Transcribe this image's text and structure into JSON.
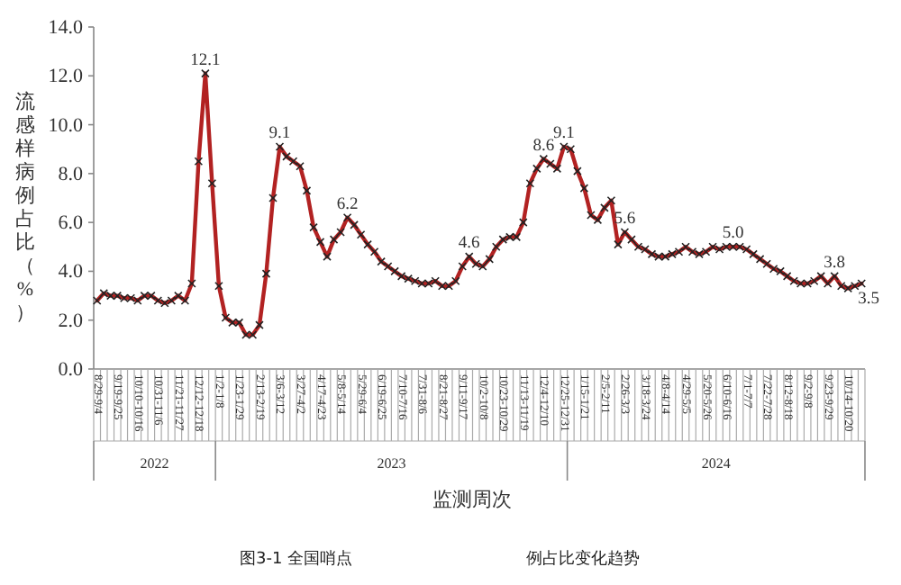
{
  "chart_data": {
    "type": "line",
    "xlabel": "监测周次",
    "ylabel": "流感样病例占比（%）",
    "categories": [
      "8/29-9/4",
      null,
      null,
      "9/19-9/25",
      null,
      null,
      "10/10-10/16",
      null,
      null,
      "10/31-11/6",
      null,
      null,
      "11/21-11/27",
      null,
      null,
      "12/12-12/18",
      null,
      null,
      "1/2-1/8",
      null,
      null,
      "1/23-1/29",
      null,
      null,
      "2/13-2/19",
      null,
      null,
      "3/6-3/12",
      null,
      null,
      "3/27-4/2",
      null,
      null,
      "4/17-4/23",
      null,
      null,
      "5/8-5/14",
      null,
      null,
      "5/29-6/4",
      null,
      null,
      "6/19-6/25",
      null,
      null,
      "7/10-7/16",
      null,
      null,
      "7/31-8/6",
      null,
      null,
      "8/21-8/27",
      null,
      null,
      "9/11-9/17",
      null,
      null,
      "10/2-10/8",
      null,
      null,
      "10/23-10/29",
      null,
      null,
      "11/13-11/19",
      null,
      null,
      "12/4-12/10",
      null,
      null,
      "12/25-12/31",
      null,
      null,
      "1/15-1/21",
      null,
      null,
      "2/5-2/11",
      null,
      null,
      "2/26-3/3",
      null,
      null,
      "3/18-3/24",
      null,
      null,
      "4/8-4/14",
      null,
      null,
      "4/29-5/5",
      null,
      null,
      "5/20-5/26",
      null,
      null,
      "6/10-6/16",
      null,
      null,
      "7/1-7/7",
      null,
      null,
      "7/22-7/28",
      null,
      null,
      "8/12-8/18",
      null,
      null,
      "9/2-9/8",
      null,
      null,
      "9/23-9/29",
      null,
      null,
      "10/14-10/20",
      null,
      null
    ],
    "series": [
      {
        "color": "#b22222",
        "values": [
          2.8,
          3.1,
          3.0,
          3.0,
          2.9,
          2.9,
          2.8,
          3.0,
          3.0,
          2.8,
          2.7,
          2.8,
          3.0,
          2.8,
          3.5,
          8.5,
          12.1,
          7.6,
          3.4,
          2.1,
          1.9,
          1.9,
          1.4,
          1.4,
          1.8,
          3.9,
          7.0,
          9.1,
          8.7,
          8.5,
          8.3,
          7.3,
          5.8,
          5.2,
          4.6,
          5.3,
          5.6,
          6.2,
          5.9,
          5.5,
          5.1,
          4.8,
          4.4,
          4.2,
          4.0,
          3.8,
          3.7,
          3.6,
          3.5,
          3.5,
          3.6,
          3.4,
          3.4,
          3.6,
          4.2,
          4.6,
          4.3,
          4.2,
          4.5,
          5.0,
          5.3,
          5.4,
          5.4,
          6.0,
          7.6,
          8.2,
          8.6,
          8.4,
          8.2,
          9.1,
          9.0,
          8.1,
          7.4,
          6.3,
          6.1,
          6.6,
          6.9,
          5.1,
          5.6,
          5.3,
          5.0,
          4.9,
          4.7,
          4.6,
          4.6,
          4.7,
          4.8,
          5.0,
          4.8,
          4.7,
          4.8,
          5.0,
          4.9,
          5.0,
          5.0,
          5.0,
          4.9,
          4.7,
          4.5,
          4.3,
          4.1,
          4.0,
          3.8,
          3.6,
          3.5,
          3.5,
          3.6,
          3.8,
          3.5,
          3.8,
          3.4,
          3.3,
          3.4,
          3.5
        ],
        "value_labels": [
          null,
          null,
          null,
          null,
          null,
          null,
          null,
          null,
          null,
          null,
          null,
          null,
          null,
          null,
          null,
          null,
          "12.1",
          null,
          null,
          null,
          null,
          null,
          null,
          null,
          null,
          null,
          null,
          "9.1",
          null,
          null,
          null,
          null,
          null,
          null,
          null,
          null,
          null,
          "6.2",
          null,
          null,
          null,
          null,
          null,
          null,
          null,
          null,
          null,
          null,
          null,
          null,
          null,
          null,
          null,
          null,
          null,
          "4.6",
          null,
          null,
          null,
          null,
          null,
          null,
          null,
          null,
          null,
          null,
          "8.6",
          null,
          null,
          "9.1",
          null,
          null,
          null,
          null,
          null,
          null,
          null,
          null,
          "5.6",
          null,
          null,
          null,
          null,
          null,
          null,
          null,
          null,
          null,
          null,
          null,
          null,
          null,
          null,
          null,
          "5.0",
          null,
          null,
          null,
          null,
          null,
          null,
          null,
          null,
          null,
          null,
          null,
          null,
          null,
          null,
          "3.8",
          null,
          null,
          null,
          "3.5"
        ]
      }
    ],
    "ylim": [
      0,
      14
    ],
    "yticks": [
      {
        "value": 0,
        "label": "0.0"
      },
      {
        "value": 2,
        "label": "2.0"
      },
      {
        "value": 4,
        "label": "4.0"
      },
      {
        "value": 6,
        "label": "6.0"
      },
      {
        "value": 8,
        "label": "8.0"
      },
      {
        "value": 10,
        "label": "10.0"
      },
      {
        "value": 12,
        "label": "12.0"
      },
      {
        "value": 14,
        "label": "14.0"
      }
    ],
    "marker": "cross",
    "line_style": "solid",
    "grid": false,
    "annotations": [
      "2022",
      "2023",
      "2024",
      "图3-1 全国哨点",
      "例占比变化趋势"
    ]
  }
}
